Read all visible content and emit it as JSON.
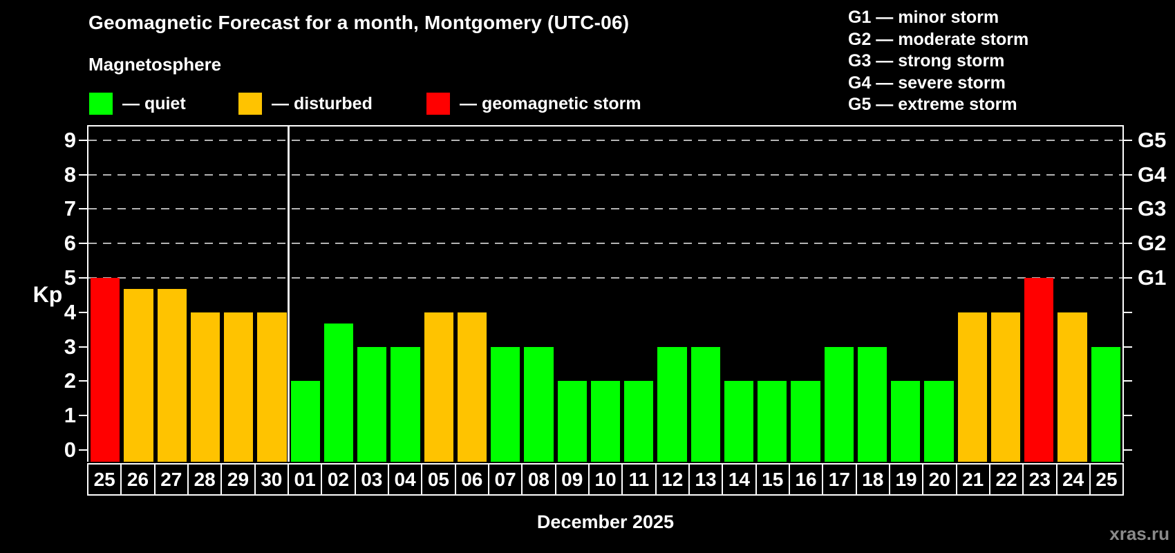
{
  "header": {
    "title": "Geomagnetic Forecast for a month, Montgomery (UTC-06)",
    "subtitle": "Magnetosphere"
  },
  "legend": {
    "items": [
      {
        "key": "quiet",
        "label": "— quiet",
        "color": "#00ff00"
      },
      {
        "key": "disturbed",
        "label": "— disturbed",
        "color": "#ffc300"
      },
      {
        "key": "storm",
        "label": "— geomagnetic storm",
        "color": "#ff0000"
      }
    ]
  },
  "storm_scale_legend": {
    "items": [
      "G1 — minor storm",
      "G2 — moderate storm",
      "G3 — strong storm",
      "G4 — severe storm",
      "G5 — extreme storm"
    ]
  },
  "chart_data": {
    "type": "bar",
    "title": "Geomagnetic Forecast for a month, Montgomery (UTC-06)",
    "ylabel": "Kp",
    "xlabel": "December 2025",
    "ylim": [
      -0.35,
      9.4
    ],
    "y_ticks": [
      0,
      1,
      2,
      3,
      4,
      5,
      6,
      7,
      8,
      9
    ],
    "gridlines_at": [
      5,
      6,
      7,
      8,
      9
    ],
    "grid": true,
    "right_axis_labels": [
      {
        "label": "G1",
        "kp": 5
      },
      {
        "label": "G2",
        "kp": 6
      },
      {
        "label": "G3",
        "kp": 7
      },
      {
        "label": "G4",
        "kp": 8
      },
      {
        "label": "G5",
        "kp": 9
      }
    ],
    "month_separator_after_index": 5,
    "categories": [
      "25",
      "26",
      "27",
      "28",
      "29",
      "30",
      "01",
      "02",
      "03",
      "04",
      "05",
      "06",
      "07",
      "08",
      "09",
      "10",
      "11",
      "12",
      "13",
      "14",
      "15",
      "16",
      "17",
      "18",
      "19",
      "20",
      "21",
      "22",
      "23",
      "24",
      "25"
    ],
    "values": [
      5,
      4.67,
      4.67,
      4,
      4,
      4,
      2,
      3.67,
      3,
      3,
      4,
      4,
      3,
      3,
      2,
      2,
      2,
      3,
      3,
      2,
      2,
      2,
      3,
      3,
      2,
      2,
      4,
      4,
      5,
      4,
      3
    ],
    "levels": [
      "storm",
      "disturbed",
      "disturbed",
      "disturbed",
      "disturbed",
      "disturbed",
      "quiet",
      "quiet",
      "quiet",
      "quiet",
      "disturbed",
      "disturbed",
      "quiet",
      "quiet",
      "quiet",
      "quiet",
      "quiet",
      "quiet",
      "quiet",
      "quiet",
      "quiet",
      "quiet",
      "quiet",
      "quiet",
      "quiet",
      "quiet",
      "disturbed",
      "disturbed",
      "storm",
      "disturbed",
      "quiet"
    ],
    "color_map": {
      "quiet": "#00ff00",
      "disturbed": "#ffc300",
      "storm": "#ff0000"
    }
  },
  "footer": {
    "watermark": "xras.ru"
  }
}
